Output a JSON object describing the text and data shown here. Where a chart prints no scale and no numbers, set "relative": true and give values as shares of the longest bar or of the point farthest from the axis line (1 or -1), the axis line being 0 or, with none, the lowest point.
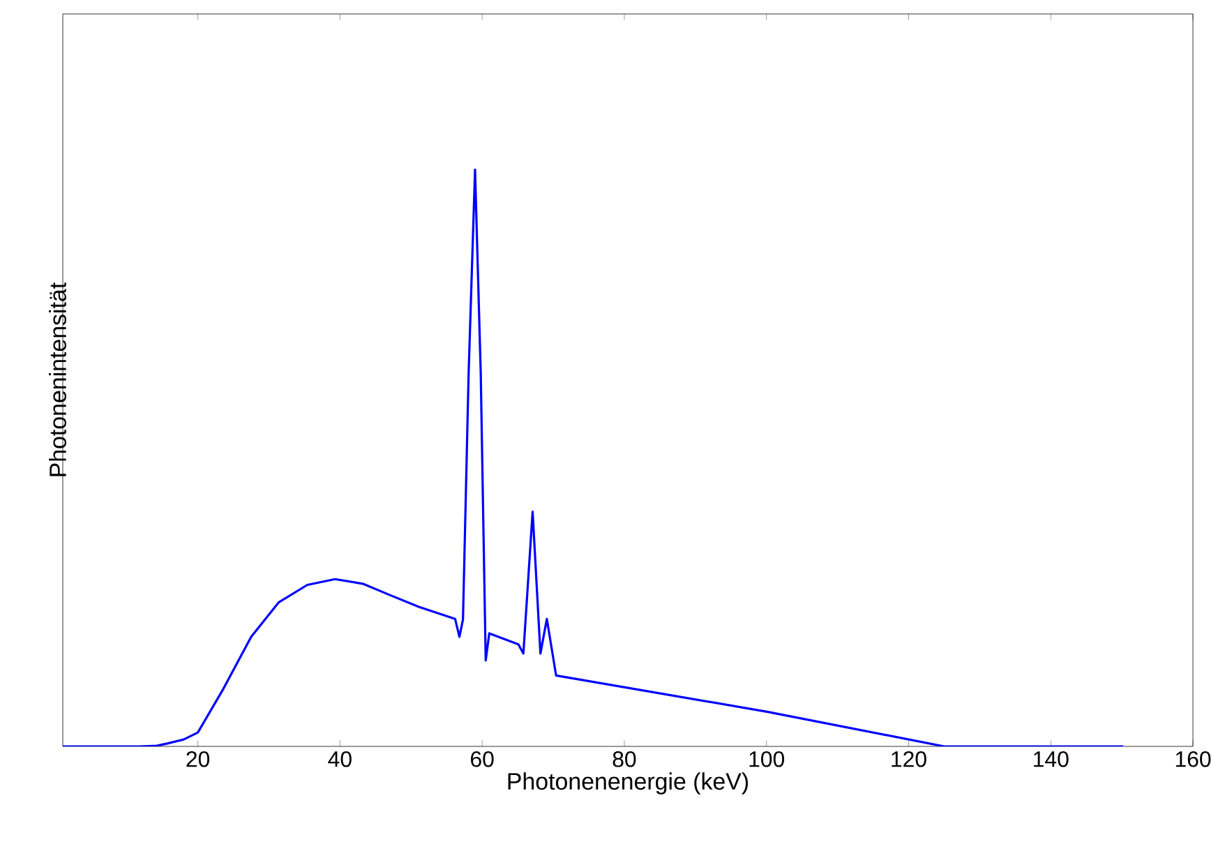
{
  "chart_data": {
    "type": "line",
    "xlabel": "Photonenenergie (keV)",
    "ylabel": "Photonenintensität",
    "relative": true,
    "color": "#0000ff",
    "xlim": [
      1,
      160
    ],
    "xticks": [
      20,
      40,
      60,
      80,
      100,
      120,
      140,
      160
    ],
    "tick_labels": "x",
    "x": [
      1,
      11.8,
      14.2,
      15.7,
      18,
      20,
      23.6,
      27.5,
      31.4,
      35.4,
      39.3,
      43.2,
      47.1,
      51.1,
      56.2,
      56.8,
      57.3,
      58.1,
      59.0,
      59.8,
      60.5,
      61.0,
      65.1,
      65.8,
      67.1,
      68.2,
      69.1,
      70.4,
      100.1,
      125.0,
      150.2
    ],
    "values": [
      0,
      0,
      0.001,
      0.005,
      0.012,
      0.024,
      0.1,
      0.19,
      0.25,
      0.28,
      0.29,
      0.282,
      0.262,
      0.242,
      0.221,
      0.19,
      0.22,
      0.648,
      1.0,
      0.648,
      0.149,
      0.196,
      0.177,
      0.161,
      0.407,
      0.161,
      0.221,
      0.123,
      0.06,
      0,
      0
    ]
  }
}
